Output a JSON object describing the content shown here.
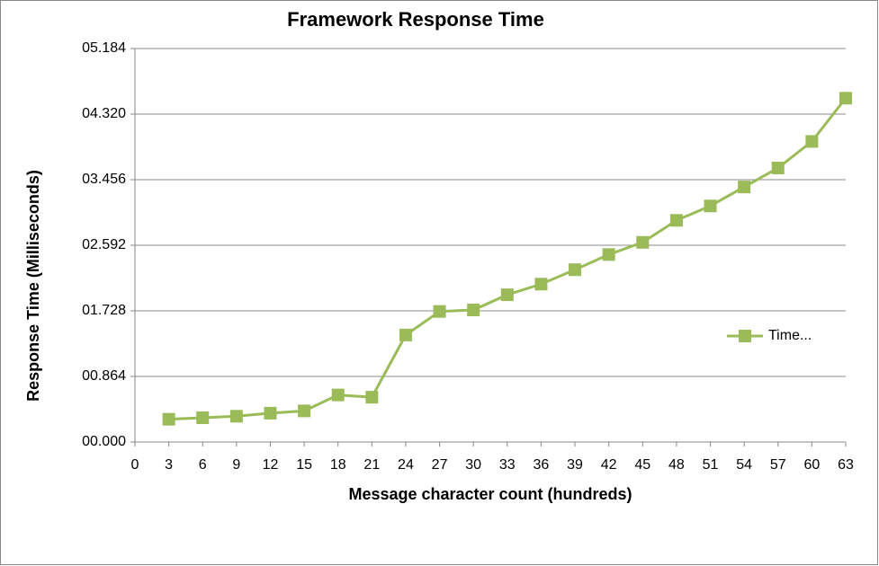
{
  "chart_data": {
    "type": "line",
    "title": "Framework Response Time",
    "x_label": "Message character count (hundreds)",
    "y_label": "Response Time (Milliseconds)",
    "x": [
      3,
      6,
      9,
      12,
      15,
      18,
      21,
      24,
      27,
      30,
      33,
      36,
      39,
      42,
      45,
      48,
      51,
      54,
      57,
      60,
      63
    ],
    "series": [
      {
        "name": "Time...",
        "color": "#9bbb59",
        "values": [
          0.3,
          0.32,
          0.34,
          0.38,
          0.41,
          0.62,
          0.59,
          1.41,
          1.72,
          1.74,
          1.94,
          2.08,
          2.27,
          2.47,
          2.63,
          2.92,
          3.11,
          3.36,
          3.61,
          3.96,
          4.53
        ]
      }
    ],
    "xlim": [
      0,
      63
    ],
    "xticks": [
      0,
      3,
      6,
      9,
      12,
      15,
      18,
      21,
      24,
      27,
      30,
      33,
      36,
      39,
      42,
      45,
      48,
      51,
      54,
      57,
      60,
      63
    ],
    "ylim": [
      0,
      5.184
    ],
    "yticks": [
      {
        "value": 0,
        "label": "00.000"
      },
      {
        "value": 0.864,
        "label": "00.864"
      },
      {
        "value": 1.728,
        "label": "01.728"
      },
      {
        "value": 2.592,
        "label": "02.592"
      },
      {
        "value": 3.456,
        "label": "03.456"
      },
      {
        "value": 4.32,
        "label": "04.320"
      },
      {
        "value": 5.184,
        "label": "05.184"
      }
    ],
    "grid": true,
    "legend": "right"
  }
}
